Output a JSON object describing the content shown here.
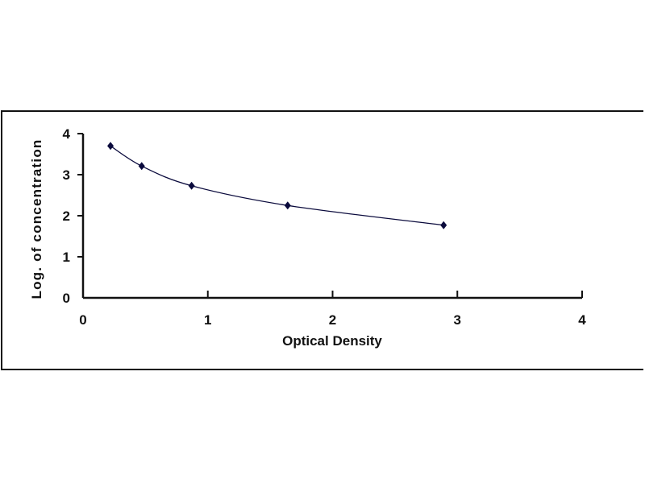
{
  "chart_data": {
    "type": "scatter",
    "title": "",
    "xlabel": "Optical Density",
    "ylabel": "Log. of concentration",
    "xlim": [
      0,
      4
    ],
    "ylim": [
      0,
      4
    ],
    "xticks": [
      "0",
      "1",
      "2",
      "3",
      "4"
    ],
    "yticks": [
      "0",
      "1",
      "2",
      "3",
      "4"
    ],
    "grid": false,
    "series": [
      {
        "x": [
          0.22,
          0.47,
          0.87,
          1.64,
          2.89
        ],
        "y": [
          3.7,
          3.21,
          2.73,
          2.25,
          1.77
        ],
        "marker": "diamond",
        "trendline": "smooth curve",
        "color": "#0a0a3c"
      }
    ]
  }
}
